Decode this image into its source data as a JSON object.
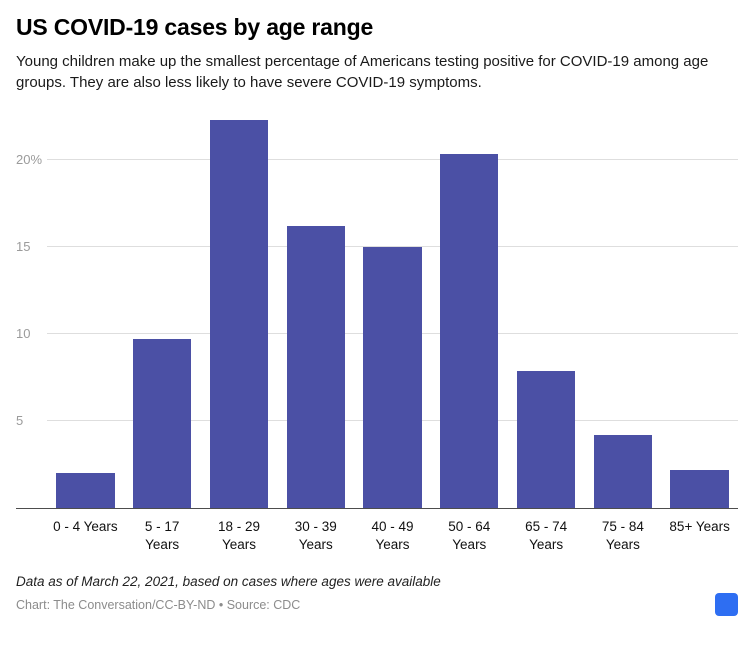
{
  "chart_data": {
    "type": "bar",
    "title": "US COVID-19 cases by age range",
    "subtitle": "Young children make up the smallest percentage of Americans testing positive for COVID-19 among age groups. They are also less likely to have severe COVID-19 symptoms.",
    "categories": [
      "0 - 4 Years",
      "5 - 17 Years",
      "18 - 29 Years",
      "30 - 39 Years",
      "40 - 49 Years",
      "50 - 64 Years",
      "65 - 74 Years",
      "75 - 84 Years",
      "85+ Years"
    ],
    "values": [
      2,
      9.7,
      22.3,
      16.2,
      15,
      20.4,
      7.9,
      4.2,
      2.2
    ],
    "unit": "%",
    "xlabel": "",
    "ylabel": "",
    "ylim": [
      0,
      22.5
    ],
    "yticks": [
      5,
      10,
      15,
      20
    ],
    "ytick_labels": [
      "5",
      "10",
      "15",
      "20%"
    ],
    "x_tick_lines": [
      [
        "0 - 4 Years"
      ],
      [
        "5 - 17",
        "Years"
      ],
      [
        "18 - 29",
        "Years"
      ],
      [
        "30 - 39",
        "Years"
      ],
      [
        "40 - 49",
        "Years"
      ],
      [
        "50 - 64",
        "Years"
      ],
      [
        "65 - 74",
        "Years"
      ],
      [
        "75 - 84",
        "Years"
      ],
      [
        "85+ Years"
      ]
    ],
    "grid": "horizontal",
    "legend": "none",
    "bar_color": "#4b50a5"
  },
  "footer": {
    "note": "Data as of March 22, 2021, based on cases where ages were available",
    "credit": "Chart: The Conversation/CC-BY-ND • Source: CDC"
  },
  "logo": {
    "color": "#2e6ef2"
  }
}
